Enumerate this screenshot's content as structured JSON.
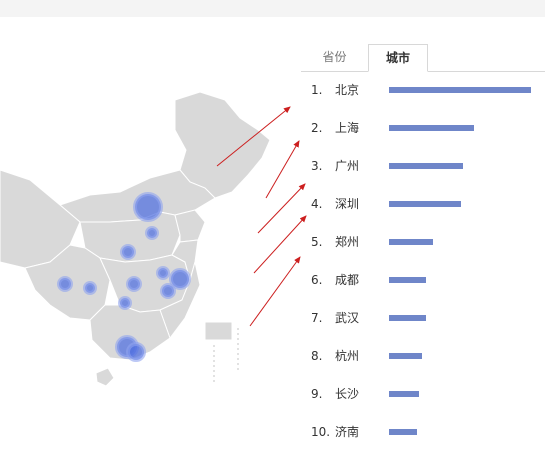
{
  "tabs": [
    {
      "label": "省份",
      "active": false
    },
    {
      "label": "城市",
      "active": true
    }
  ],
  "ranking": [
    {
      "rank": "1.",
      "city": "北京",
      "value": 1.0
    },
    {
      "rank": "2.",
      "city": "上海",
      "value": 0.6
    },
    {
      "rank": "3.",
      "city": "广州",
      "value": 0.52
    },
    {
      "rank": "4.",
      "city": "深圳",
      "value": 0.51
    },
    {
      "rank": "5.",
      "city": "郑州",
      "value": 0.31
    },
    {
      "rank": "6.",
      "city": "成都",
      "value": 0.26
    },
    {
      "rank": "7.",
      "city": "武汉",
      "value": 0.26
    },
    {
      "rank": "8.",
      "city": "杭州",
      "value": 0.23
    },
    {
      "rank": "9.",
      "city": "长沙",
      "value": 0.21
    },
    {
      "rank": "10.",
      "city": "济南",
      "value": 0.2
    }
  ],
  "colors": {
    "bar": "#6f86c9",
    "bubble": "#4a6be0",
    "land": "#d9d9d9",
    "arrow": "#cc1f1f"
  }
}
